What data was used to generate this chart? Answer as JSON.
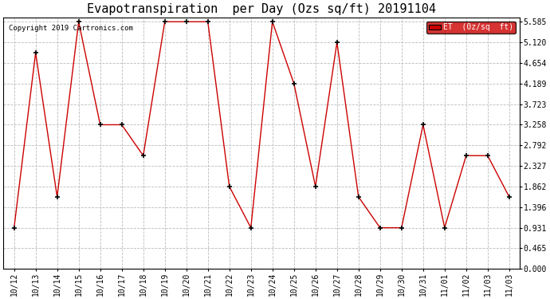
{
  "title": "Evapotranspiration  per Day (Ozs sq/ft) 20191104",
  "copyright": "Copyright 2019 Cartronics.com",
  "legend_label": "ET  (0z/sq  ft)",
  "x_labels": [
    "10/12",
    "10/13",
    "10/14",
    "10/15",
    "10/16",
    "10/17",
    "10/18",
    "10/19",
    "10/20",
    "10/21",
    "10/22",
    "10/23",
    "10/24",
    "10/25",
    "10/26",
    "10/27",
    "10/28",
    "10/29",
    "10/30",
    "10/31",
    "11/01",
    "11/02",
    "11/03",
    "11/03"
  ],
  "y_values": [
    0.931,
    4.885,
    1.629,
    5.585,
    3.258,
    3.258,
    2.56,
    5.585,
    5.585,
    5.585,
    1.862,
    0.931,
    5.585,
    4.189,
    1.862,
    5.12,
    1.629,
    0.931,
    0.931,
    3.258,
    0.931,
    2.56,
    2.56,
    1.629
  ],
  "ylim_min": 0.0,
  "ylim_max": 5.585,
  "yticks": [
    0.0,
    0.465,
    0.931,
    1.396,
    1.862,
    2.327,
    2.792,
    3.258,
    3.723,
    4.189,
    4.654,
    5.12,
    5.585
  ],
  "line_color": "#cc0000",
  "marker_color": "#000000",
  "bg_color": "#ffffff",
  "grid_color": "#bbbbbb",
  "title_fontsize": 11,
  "axis_fontsize": 7,
  "copyright_fontsize": 6.5,
  "legend_bg": "#cc0000",
  "legend_text_color": "#ffffff",
  "legend_fontsize": 7
}
